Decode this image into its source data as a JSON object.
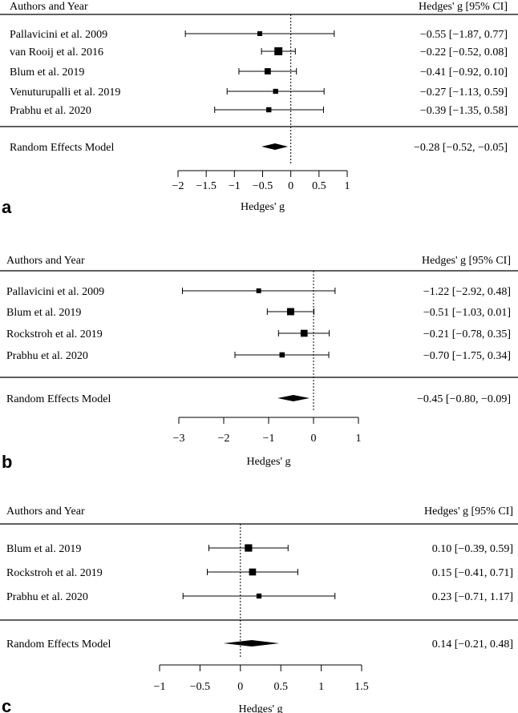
{
  "chart_data": [
    {
      "type": "forest",
      "panel_label": "a",
      "header_left": "Authors and Year",
      "header_right": "Hedges' g [95% CI]",
      "xlabel": "Hedges' g",
      "xlim": [
        -2,
        1
      ],
      "ticks": [
        -2,
        -1.5,
        -1,
        -0.5,
        0,
        0.5,
        1
      ],
      "tick_labels": [
        "−2",
        "−1.5",
        "−1",
        "−0.5",
        "0",
        "0.5",
        "1"
      ],
      "reference_line": 0,
      "studies": [
        {
          "label": "Pallavicini et al. 2009",
          "est": -0.55,
          "lo": -1.87,
          "hi": 0.77,
          "weight": 0.06,
          "ci_text": "−0.55 [−1.87,  0.77]"
        },
        {
          "label": "van Rooij et al. 2016",
          "est": -0.22,
          "lo": -0.52,
          "hi": 0.08,
          "weight": 0.55,
          "ci_text": "−0.22 [−0.52,  0.08]"
        },
        {
          "label": "Blum et al. 2019",
          "est": -0.41,
          "lo": -0.92,
          "hi": 0.1,
          "weight": 0.22,
          "ci_text": "−0.41 [−0.92,  0.10]"
        },
        {
          "label": "Venuturupalli et al. 2019",
          "est": -0.27,
          "lo": -1.13,
          "hi": 0.59,
          "weight": 0.08,
          "ci_text": "−0.27 [−1.13,  0.59]"
        },
        {
          "label": "Prabhu et al. 2020",
          "est": -0.39,
          "lo": -1.35,
          "hi": 0.58,
          "weight": 0.09,
          "ci_text": "−0.39 [−1.35,  0.58]"
        }
      ],
      "summary": {
        "label": "Random Effects Model",
        "est": -0.28,
        "lo": -0.52,
        "hi": -0.05,
        "ci_text": "−0.28 [−0.52, −0.05]"
      }
    },
    {
      "type": "forest",
      "panel_label": "b",
      "header_left": "Authors and Year",
      "header_right": "Hedges' g [95% CI]",
      "xlabel": "Hedges' g",
      "xlim": [
        -3,
        1
      ],
      "ticks": [
        -3,
        -2,
        -1,
        0,
        1
      ],
      "tick_labels": [
        "−3",
        "−2",
        "−1",
        "0",
        "1"
      ],
      "reference_line": 0,
      "studies": [
        {
          "label": "Pallavicini et al. 2009",
          "est": -1.22,
          "lo": -2.92,
          "hi": 0.48,
          "weight": 0.06,
          "ci_text": "−1.22 [−2.92,  0.48]"
        },
        {
          "label": "Blum et al. 2019",
          "est": -0.51,
          "lo": -1.03,
          "hi": 0.01,
          "weight": 0.38,
          "ci_text": "−0.51 [−1.03,  0.01]"
        },
        {
          "label": "Rockstroh et al. 2019",
          "est": -0.21,
          "lo": -0.78,
          "hi": 0.35,
          "weight": 0.34,
          "ci_text": "−0.21 [−0.78,  0.35]"
        },
        {
          "label": "Prabhu et al. 2020",
          "est": -0.7,
          "lo": -1.75,
          "hi": 0.34,
          "weight": 0.1,
          "ci_text": "−0.70 [−1.75,  0.34]"
        }
      ],
      "summary": {
        "label": "Random Effects Model",
        "est": -0.45,
        "lo": -0.8,
        "hi": -0.09,
        "ci_text": "−0.45 [−0.80, −0.09]"
      }
    },
    {
      "type": "forest",
      "panel_label": "c",
      "header_left": "Authors and Year",
      "header_right": "Hedges' g [95% CI]",
      "xlabel": "Hedges' g",
      "xlim": [
        -1,
        1.5
      ],
      "ticks": [
        -1,
        -0.5,
        0,
        0.5,
        1,
        1.5
      ],
      "tick_labels": [
        "−1",
        "−0.5",
        "0",
        "0.5",
        "1",
        "1.5"
      ],
      "reference_line": 0,
      "studies": [
        {
          "label": "Blum et al. 2019",
          "est": 0.1,
          "lo": -0.39,
          "hi": 0.59,
          "weight": 0.42,
          "ci_text": "0.10 [−0.39, 0.59]"
        },
        {
          "label": "Rockstroh et al. 2019",
          "est": 0.15,
          "lo": -0.41,
          "hi": 0.71,
          "weight": 0.34,
          "ci_text": "0.15 [−0.41, 0.71]"
        },
        {
          "label": "Prabhu et al. 2020",
          "est": 0.23,
          "lo": -0.71,
          "hi": 1.17,
          "weight": 0.08,
          "ci_text": "0.23 [−0.71, 1.17]"
        }
      ],
      "summary": {
        "label": "Random Effects Model",
        "est": 0.14,
        "lo": -0.21,
        "hi": 0.48,
        "ci_text": "0.14 [−0.21, 0.48]"
      }
    }
  ]
}
